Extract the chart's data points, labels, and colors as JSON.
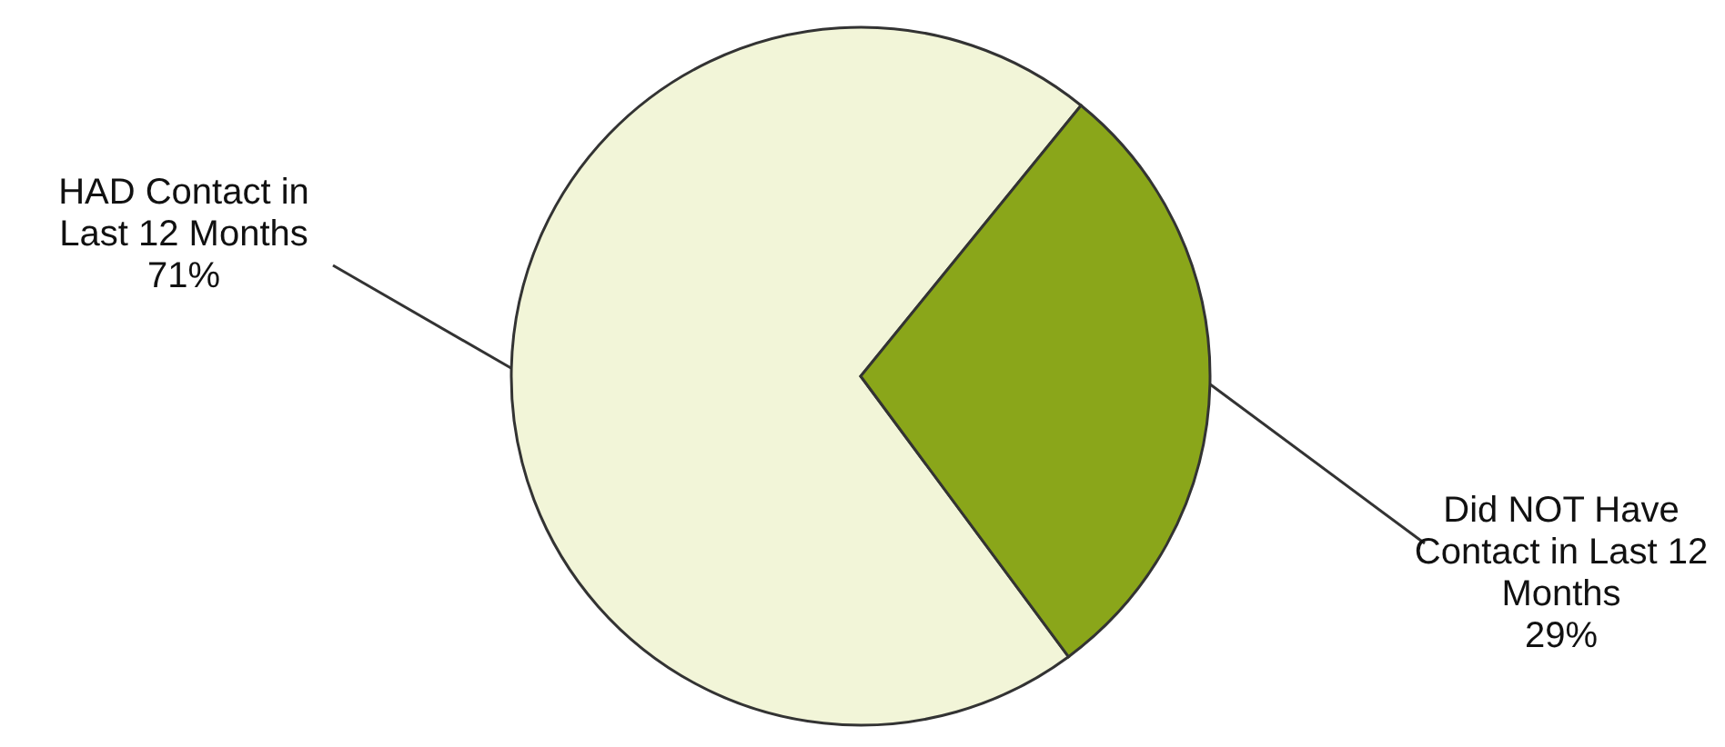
{
  "chart_data": {
    "type": "pie",
    "categories": [
      "HAD Contact in Last 12 Months",
      "Did NOT Have Contact in Last 12 Months"
    ],
    "values": [
      71,
      29
    ],
    "colors": [
      "#f2f5d8",
      "#8aa61a"
    ],
    "value_labels": [
      "71%",
      "29%"
    ]
  }
}
